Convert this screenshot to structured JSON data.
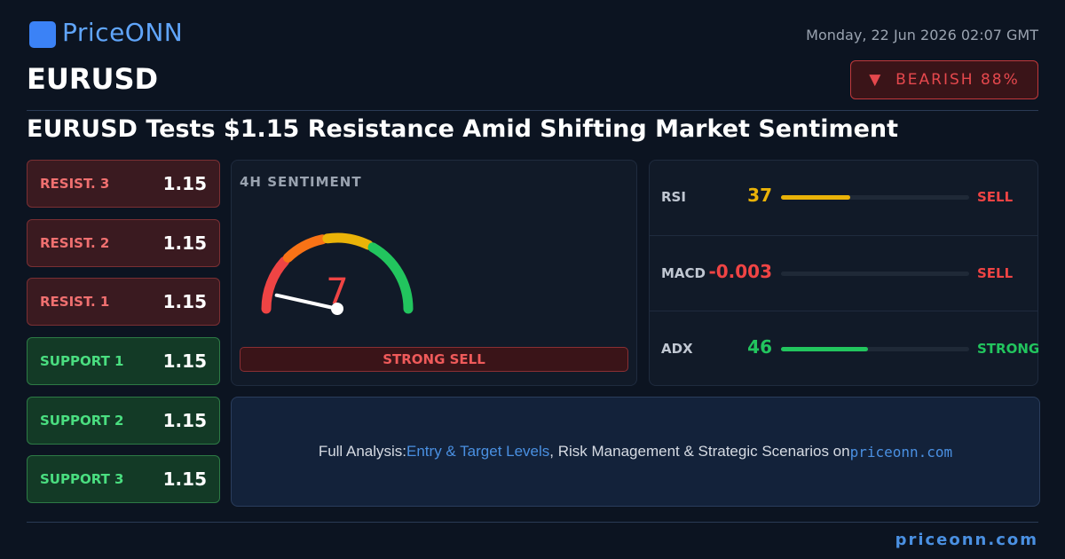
{
  "brand": "PriceONN",
  "datetime": "Monday, 22 Jun 2026 02:07 GMT",
  "symbol": "EURUSD",
  "bias": "BEARISH 88%",
  "headline": "EURUSD Tests $1.15 Resistance Amid Shifting Market Sentiment",
  "levels": [
    {
      "label": "RESIST. 3",
      "value": "1.15",
      "kind": "resistance"
    },
    {
      "label": "RESIST. 2",
      "value": "1.15",
      "kind": "resistance"
    },
    {
      "label": "RESIST. 1",
      "value": "1.15",
      "kind": "resistance"
    },
    {
      "label": "SUPPORT 1",
      "value": "1.15",
      "kind": "support"
    },
    {
      "label": "SUPPORT 2",
      "value": "1.15",
      "kind": "support"
    },
    {
      "label": "SUPPORT 3",
      "value": "1.15",
      "kind": "support"
    }
  ],
  "sentiment": {
    "title": "4H SENTIMENT",
    "score": 7,
    "verdict": "STRONG SELL"
  },
  "indicators": [
    {
      "name": "RSI",
      "value": 37,
      "signal": "SELL",
      "color": "#eab308",
      "signal_color": "#ef4444"
    },
    {
      "name": "MACD",
      "value": -0.003,
      "signal": "SELL",
      "color": "#ef4444",
      "signal_color": "#ef4444"
    },
    {
      "name": "ADX",
      "value": 46,
      "signal": "STRONG",
      "color": "#22c55e",
      "signal_color": "#22c55e"
    }
  ],
  "cta": {
    "lead": "Full Analysis:",
    "link": "Entry & Target Levels",
    "middle": ", Risk Management & Strategic Scenarios on",
    "site": "priceonn.com"
  },
  "footer": "priceonn.com"
}
